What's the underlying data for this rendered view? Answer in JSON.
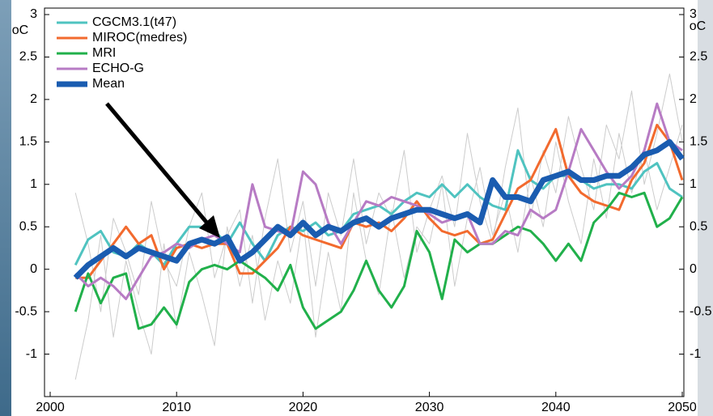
{
  "chart_data": {
    "type": "line",
    "y_label": "oC",
    "x": [
      2002,
      2003,
      2004,
      2005,
      2006,
      2007,
      2008,
      2009,
      2010,
      2011,
      2012,
      2013,
      2014,
      2015,
      2016,
      2017,
      2018,
      2019,
      2020,
      2021,
      2022,
      2023,
      2024,
      2025,
      2026,
      2027,
      2028,
      2029,
      2030,
      2031,
      2032,
      2033,
      2034,
      2035,
      2036,
      2037,
      2038,
      2039,
      2040,
      2041,
      2042,
      2043,
      2044,
      2045,
      2046,
      2047,
      2048,
      2049,
      2050
    ],
    "xlim": [
      2000,
      2050
    ],
    "xticks": [
      2000,
      2010,
      2020,
      2030,
      2040,
      2050
    ],
    "ylim": [
      -1.5,
      3
    ],
    "yticks": [
      -1,
      -0.5,
      0,
      0.5,
      1,
      1.5,
      2,
      2.5,
      3
    ],
    "legend": "upper left",
    "series": [
      {
        "color": "#cccccc",
        "values": [
          0.9,
          0.3,
          -0.5,
          0.6,
          0.2,
          -0.3,
          0.8,
          0.1,
          -0.2,
          0.5,
          0.9,
          -0.1,
          0.4,
          0.7,
          -0.4,
          0.6,
          1.3,
          0.2,
          0.8,
          -0.2,
          0.9,
          0.4,
          1.3,
          0.3,
          0.9,
          0.6,
          1.4,
          0.2,
          0.7,
          1.1,
          0.5,
          1.6,
          0.8,
          0.3,
          1.2,
          1.9,
          0.6,
          1.4,
          0.9,
          1.8,
          1.2,
          0.7,
          1.7,
          1.3,
          2.1,
          1.0,
          1.6,
          2.3,
          1.5
        ]
      },
      {
        "color": "#cccccc",
        "values": [
          -1.3,
          -0.6,
          0.4,
          -0.8,
          0.1,
          -0.5,
          -1.0,
          0.3,
          -0.7,
          0.2,
          -0.3,
          -0.9,
          0.5,
          -0.2,
          0.4,
          -0.6,
          0.1,
          -0.4,
          0.6,
          -0.8,
          0.2,
          -0.5,
          0.9,
          0.1,
          -0.3,
          0.7,
          -0.1,
          0.5,
          0.3,
          1.0,
          -0.2,
          0.6,
          1.2,
          0.4,
          0.9,
          0.2,
          1.1,
          0.5,
          1.5,
          0.8,
          0.3,
          1.3,
          0.6,
          1.6,
          0.9,
          1.4,
          0.7,
          1.2,
          1.7
        ]
      },
      {
        "name": "CGCM3.1(t47)",
        "color": "#4fc3c0",
        "values": [
          0.05,
          0.35,
          0.45,
          0.2,
          0.15,
          0.3,
          0.2,
          0.05,
          0.3,
          0.5,
          0.5,
          0.45,
          0.3,
          0.55,
          0.3,
          0.1,
          0.4,
          0.5,
          0.45,
          0.55,
          0.4,
          0.45,
          0.65,
          0.7,
          0.75,
          0.65,
          0.8,
          0.9,
          0.85,
          1.0,
          0.85,
          1.0,
          0.85,
          0.75,
          0.7,
          1.4,
          1.05,
          0.95,
          1.1,
          1.1,
          1.05,
          0.95,
          1.0,
          1.0,
          0.95,
          1.15,
          1.25,
          0.95,
          0.85
        ]
      },
      {
        "name": "MIROC(medres)",
        "color": "#f26a2e",
        "values": [
          -0.1,
          -0.1,
          0.1,
          0.3,
          0.5,
          0.3,
          0.4,
          0.0,
          0.25,
          0.3,
          0.25,
          0.3,
          0.3,
          -0.05,
          -0.05,
          0.1,
          0.25,
          0.5,
          0.4,
          0.35,
          0.3,
          0.25,
          0.55,
          0.5,
          0.55,
          0.45,
          0.6,
          0.8,
          0.6,
          0.45,
          0.4,
          0.45,
          0.3,
          0.35,
          0.65,
          0.95,
          1.05,
          1.35,
          1.65,
          1.1,
          0.9,
          0.8,
          0.75,
          0.7,
          1.05,
          1.25,
          1.7,
          1.5,
          1.05
        ]
      },
      {
        "name": "MRI",
        "color": "#21b04b",
        "values": [
          -0.5,
          -0.05,
          -0.4,
          -0.1,
          -0.05,
          -0.7,
          -0.65,
          -0.45,
          -0.65,
          -0.15,
          0,
          0.05,
          0,
          0.1,
          0,
          -0.1,
          -0.25,
          0.05,
          -0.45,
          -0.7,
          -0.6,
          -0.5,
          -0.25,
          0.1,
          -0.25,
          -0.45,
          -0.2,
          0.45,
          0.2,
          -0.35,
          0.35,
          0.2,
          0.3,
          0.3,
          0.4,
          0.5,
          0.45,
          0.3,
          0.1,
          0.3,
          0.1,
          0.55,
          0.7,
          0.9,
          0.85,
          0.9,
          0.5,
          0.6,
          0.85
        ]
      },
      {
        "name": "ECHO-G",
        "color": "#b77bc4",
        "values": [
          -0.05,
          -0.2,
          -0.1,
          -0.2,
          -0.35,
          -0.1,
          0.15,
          0.2,
          0.3,
          0.25,
          0.35,
          0.4,
          0.3,
          0.2,
          1.0,
          0.5,
          0.45,
          0.4,
          1.15,
          1.0,
          0.55,
          0.3,
          0.55,
          0.8,
          0.75,
          0.85,
          0.8,
          0.75,
          0.65,
          0.55,
          0.6,
          0.65,
          0.3,
          0.3,
          0.45,
          0.4,
          0.7,
          0.6,
          0.7,
          1.15,
          1.65,
          1.4,
          1.15,
          0.95,
          1.1,
          1.4,
          1.95,
          1.5,
          1.4
        ]
      },
      {
        "name": "Mean",
        "color": "#1a5cb0",
        "values": [
          -0.1,
          0.05,
          0.15,
          0.25,
          0.15,
          0.25,
          0.2,
          0.15,
          0.1,
          0.3,
          0.35,
          0.3,
          0.38,
          0.1,
          0.2,
          0.35,
          0.5,
          0.4,
          0.55,
          0.4,
          0.5,
          0.45,
          0.55,
          0.6,
          0.5,
          0.6,
          0.65,
          0.7,
          0.7,
          0.65,
          0.6,
          0.65,
          0.55,
          1.05,
          0.85,
          0.85,
          0.8,
          1.05,
          1.1,
          1.15,
          1.05,
          1.05,
          1.1,
          1.1,
          1.2,
          1.35,
          1.4,
          1.5,
          1.3
        ]
      }
    ]
  }
}
